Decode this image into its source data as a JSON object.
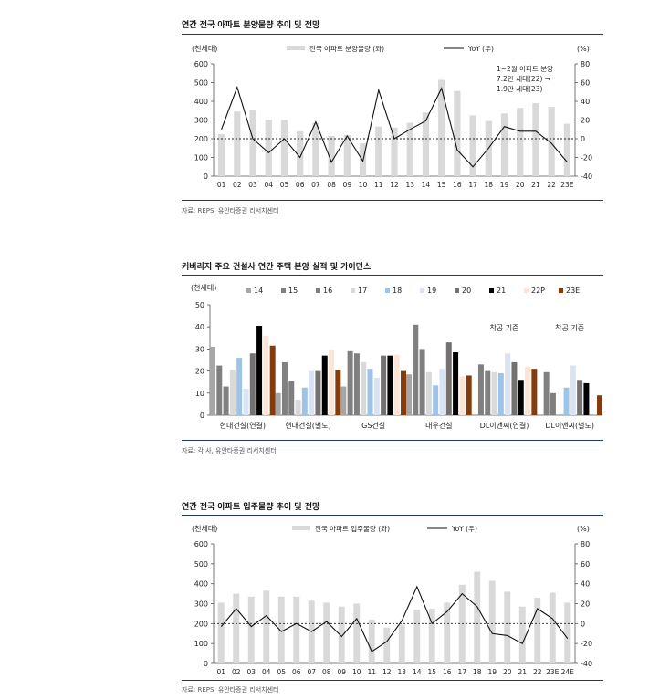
{
  "charts": [
    {
      "title": "연간 전국 아파트 분양물량 추이 및 전망",
      "source": "자료: REPS, 유안타증권 리서치센터",
      "chart_data": {
        "type": "bar",
        "categories": [
          "01",
          "02",
          "03",
          "04",
          "05",
          "06",
          "07",
          "08",
          "09",
          "10",
          "11",
          "12",
          "13",
          "14",
          "15",
          "16",
          "17",
          "18",
          "19",
          "20",
          "21",
          "22",
          "23E"
        ],
        "series": [
          {
            "name": "전국 아파트 분양물량 (좌)",
            "type": "bar",
            "axis": "left",
            "values": [
              225,
              345,
              355,
              300,
              300,
              240,
              285,
              215,
              220,
              175,
              265,
              260,
              285,
              340,
              515,
              455,
              325,
              295,
              335,
              365,
              390,
              370,
              280
            ]
          },
          {
            "name": "YoY (우)",
            "type": "line",
            "axis": "right",
            "values": [
              10,
              55,
              0,
              -15,
              0,
              -20,
              18,
              -25,
              3,
              -24,
              52,
              0,
              10,
              19,
              54,
              -12,
              -30,
              -10,
              13,
              8,
              8,
              -5,
              -25
            ]
          }
        ],
        "ylabel_left": "(천세대)",
        "ylabel_right": "(%)",
        "ylim_left": [
          0,
          600
        ],
        "yticks_left": [
          0,
          100,
          200,
          300,
          400,
          500,
          600
        ],
        "ylim_right": [
          -40,
          80
        ],
        "yticks_right": [
          -40,
          -20,
          0,
          20,
          40,
          60,
          80
        ],
        "annotations": [
          "1~2월 아파트 분양",
          "7.2만 세대(22) →",
          "1.9만 세대(23)"
        ],
        "legend": "top-center"
      }
    },
    {
      "title": "커버리지 주요 건설사 연간 주택 분양 실적 및 가이던스",
      "source": "자료: 각 사, 유안타증권 리서치센터",
      "chart_data": {
        "type": "bar",
        "categories": [
          "현대건설(연결)",
          "현대건설(별도)",
          "GS건설",
          "대우건설",
          "DL이앤씨(연결)",
          "DL이앤씨(별도)"
        ],
        "series": [
          {
            "name": "14",
            "color": "#a6a6a6",
            "values": [
              31,
              10,
              13,
              18.5,
              null,
              null
            ]
          },
          {
            "name": "15",
            "color": "#808080",
            "values": [
              22.5,
              24,
              29,
              41,
              23,
              19.5
            ]
          },
          {
            "name": "16",
            "color": "#7f7f7f",
            "values": [
              13,
              15.5,
              28,
              30,
              20,
              10
            ]
          },
          {
            "name": "17",
            "color": "#d9d9d9",
            "values": [
              20.5,
              7,
              24,
              19.5,
              19.5,
              null
            ]
          },
          {
            "name": "18",
            "color": "#9dc3e6",
            "values": [
              26,
              12.5,
              21,
              13.5,
              19,
              12.5
            ]
          },
          {
            "name": "19",
            "color": "#dae3f3",
            "values": [
              12,
              20,
              17,
              21,
              28,
              22.5
            ]
          },
          {
            "name": "20",
            "color": "#767171",
            "values": [
              28,
              20,
              27,
              33,
              24,
              16
            ]
          },
          {
            "name": "21",
            "color": "#000000",
            "values": [
              40.5,
              27,
              27,
              28.5,
              16,
              14.5
            ]
          },
          {
            "name": "22P",
            "color": "#fbe5d6",
            "values": [
              36,
              29.5,
              27.5,
              17.5,
              22,
              null
            ]
          },
          {
            "name": "23E",
            "color": "#843c0c",
            "values": [
              31.5,
              20.5,
              20,
              18,
              21,
              9
            ]
          }
        ],
        "ylabel": "(천세대)",
        "ylim": [
          0,
          50
        ],
        "yticks": [
          0,
          10,
          20,
          30,
          40,
          50
        ],
        "annotations": [
          "착공 기준",
          "착공 기준"
        ],
        "legend": "top"
      }
    },
    {
      "title": "연간 전국 아파트 입주물량 추이 및 전망",
      "source": "자료: REPS, 유안타증권 리서치센터",
      "chart_data": {
        "type": "bar",
        "categories": [
          "01",
          "02",
          "03",
          "04",
          "05",
          "06",
          "07",
          "08",
          "09",
          "10",
          "11",
          "12",
          "13",
          "14",
          "15",
          "16",
          "17",
          "18",
          "19",
          "20",
          "21",
          "22",
          "23E",
          "24E"
        ],
        "series": [
          {
            "name": "전국 아파트 입주물량 (좌)",
            "type": "bar",
            "axis": "left",
            "values": [
              305,
              350,
              335,
              365,
              335,
              335,
              315,
              305,
              285,
              300,
              220,
              180,
              195,
              270,
              275,
              305,
              395,
              460,
              415,
              360,
              285,
              330,
              355,
              305
            ]
          },
          {
            "name": "YoY (우)",
            "type": "line",
            "axis": "right",
            "values": [
              -3,
              15,
              -3,
              8,
              -8,
              0,
              -8,
              2,
              -13,
              5,
              -28,
              -18,
              3,
              37,
              0,
              12,
              30,
              17,
              -10,
              -12,
              -20,
              15,
              5,
              -15
            ]
          }
        ],
        "ylabel_left": "(천세대)",
        "ylabel_right": "(%)",
        "ylim_left": [
          0,
          600
        ],
        "yticks_left": [
          0,
          100,
          200,
          300,
          400,
          500,
          600
        ],
        "ylim_right": [
          -40,
          80
        ],
        "yticks_right": [
          -40,
          -20,
          0,
          20,
          40,
          60,
          80
        ],
        "legend": "top-center"
      }
    }
  ]
}
